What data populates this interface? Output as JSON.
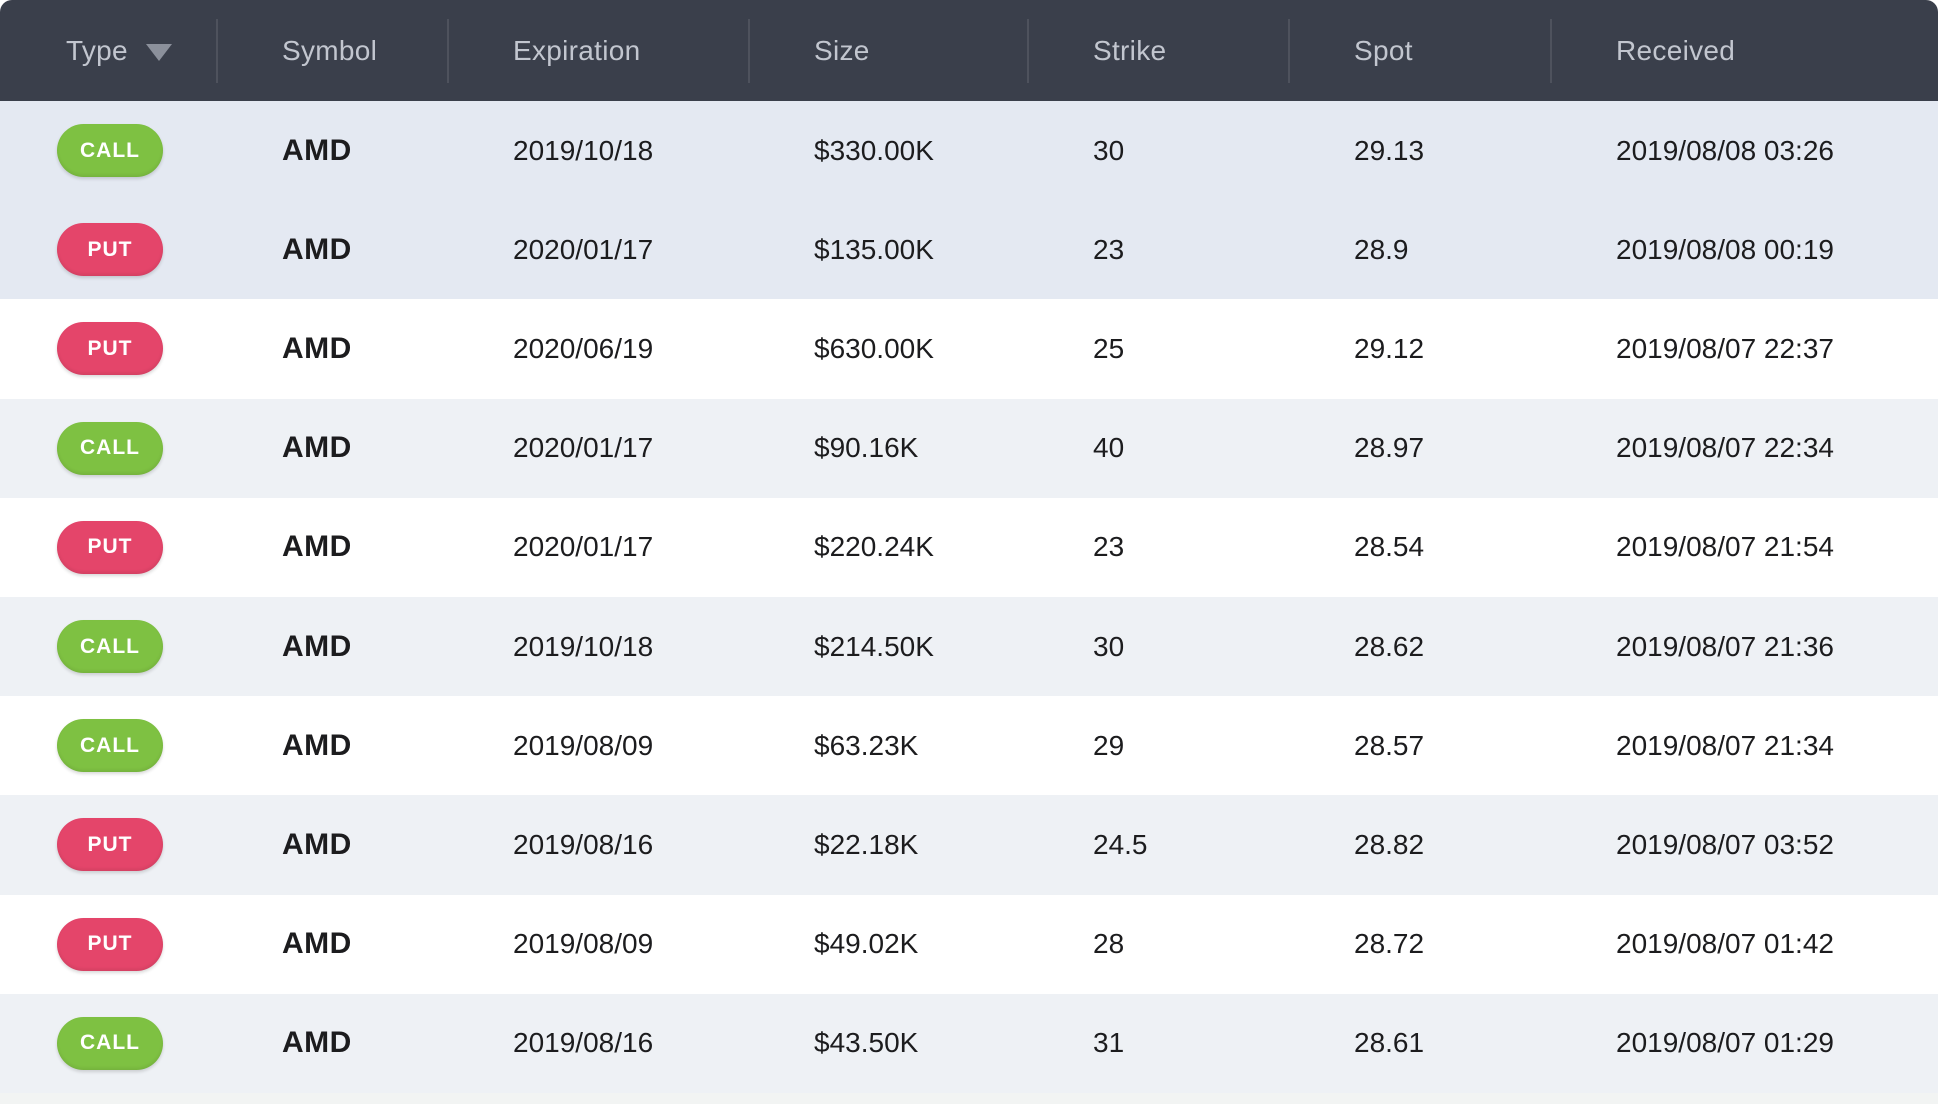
{
  "header": {
    "columns": [
      {
        "label": "Type",
        "sort_icon": "triangle-down-icon",
        "sorted": "desc"
      },
      {
        "label": "Symbol"
      },
      {
        "label": "Expiration"
      },
      {
        "label": "Size"
      },
      {
        "label": "Strike"
      },
      {
        "label": "Spot"
      },
      {
        "label": "Received"
      }
    ]
  },
  "rows": [
    {
      "type": "CALL",
      "symbol": "AMD",
      "expiration": "2019/10/18",
      "size": "$330.00K",
      "strike": "30",
      "spot": "29.13",
      "received": "2019/08/08 03:26",
      "highlight": true
    },
    {
      "type": "PUT",
      "symbol": "AMD",
      "expiration": "2020/01/17",
      "size": "$135.00K",
      "strike": "23",
      "spot": "28.9",
      "received": "2019/08/08 00:19",
      "highlight": true
    },
    {
      "type": "PUT",
      "symbol": "AMD",
      "expiration": "2020/06/19",
      "size": "$630.00K",
      "strike": "25",
      "spot": "29.12",
      "received": "2019/08/07 22:37",
      "highlight": false
    },
    {
      "type": "CALL",
      "symbol": "AMD",
      "expiration": "2020/01/17",
      "size": "$90.16K",
      "strike": "40",
      "spot": "28.97",
      "received": "2019/08/07 22:34",
      "highlight": false
    },
    {
      "type": "PUT",
      "symbol": "AMD",
      "expiration": "2020/01/17",
      "size": "$220.24K",
      "strike": "23",
      "spot": "28.54",
      "received": "2019/08/07 21:54",
      "highlight": false
    },
    {
      "type": "CALL",
      "symbol": "AMD",
      "expiration": "2019/10/18",
      "size": "$214.50K",
      "strike": "30",
      "spot": "28.62",
      "received": "2019/08/07 21:36",
      "highlight": false
    },
    {
      "type": "CALL",
      "symbol": "AMD",
      "expiration": "2019/08/09",
      "size": "$63.23K",
      "strike": "29",
      "spot": "28.57",
      "received": "2019/08/07 21:34",
      "highlight": false
    },
    {
      "type": "PUT",
      "symbol": "AMD",
      "expiration": "2019/08/16",
      "size": "$22.18K",
      "strike": "24.5",
      "spot": "28.82",
      "received": "2019/08/07 03:52",
      "highlight": false
    },
    {
      "type": "PUT",
      "symbol": "AMD",
      "expiration": "2019/08/09",
      "size": "$49.02K",
      "strike": "28",
      "spot": "28.72",
      "received": "2019/08/07 01:42",
      "highlight": false
    },
    {
      "type": "CALL",
      "symbol": "AMD",
      "expiration": "2019/08/16",
      "size": "$43.50K",
      "strike": "31",
      "spot": "28.61",
      "received": "2019/08/07 01:29",
      "highlight": false
    }
  ],
  "colors": {
    "header_bg": "#3a3f4b",
    "header_text": "#c2c6cf",
    "divider": "#4e525d",
    "sort_arrow": "#8b909b",
    "call_bg": "#7ec142",
    "put_bg": "#e4456a",
    "badge_text": "#ffffff",
    "row_text": "#1c1c1e",
    "row_highlight_bg": "#e4e9f2",
    "row_stripe_bg": "#eef1f5",
    "row_white_bg": "#ffffff"
  }
}
